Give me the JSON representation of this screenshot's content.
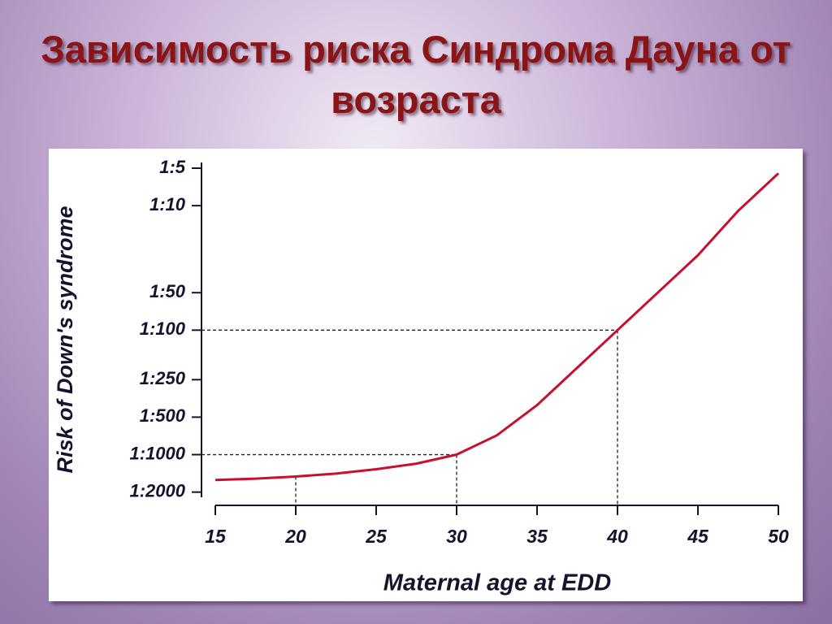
{
  "title": "Зависимость риска Синдрома Дауна от возраста",
  "chart_data": {
    "type": "line",
    "x_label": "Maternal age at EDD",
    "y_label": "Risk of Down's syndrome",
    "x": [
      15,
      17.5,
      20,
      22.5,
      25,
      27.5,
      30,
      32.5,
      35,
      37.5,
      40,
      42.5,
      45,
      47.5,
      50
    ],
    "series": [
      {
        "name": "Risk",
        "color": "#c8102e",
        "values": [
          1600,
          1560,
          1500,
          1420,
          1310,
          1180,
          1000,
          700,
          400,
          200,
          100,
          50,
          25,
          11,
          5.5
        ]
      }
    ],
    "xlim": [
      15,
      50
    ],
    "xticks": [
      15,
      20,
      25,
      30,
      35,
      40,
      45,
      50
    ],
    "ylim": [
      2200,
      4.5
    ],
    "y_log": true,
    "yticks": [
      {
        "value": 5,
        "label": "1:5"
      },
      {
        "value": 10,
        "label": "1:10"
      },
      {
        "value": 50,
        "label": "1:50"
      },
      {
        "value": 100,
        "label": "1:100"
      },
      {
        "value": 250,
        "label": "1:250"
      },
      {
        "value": 500,
        "label": "1:500"
      },
      {
        "value": 1000,
        "label": "1:1000"
      },
      {
        "value": 2000,
        "label": "1:2000"
      }
    ],
    "guides": [
      {
        "x": 20,
        "y": 1500,
        "horizontal": false
      },
      {
        "x": 30,
        "y": 1000,
        "horizontal": true
      },
      {
        "x": 40,
        "y": 100,
        "horizontal": true
      }
    ],
    "grid": false
  }
}
